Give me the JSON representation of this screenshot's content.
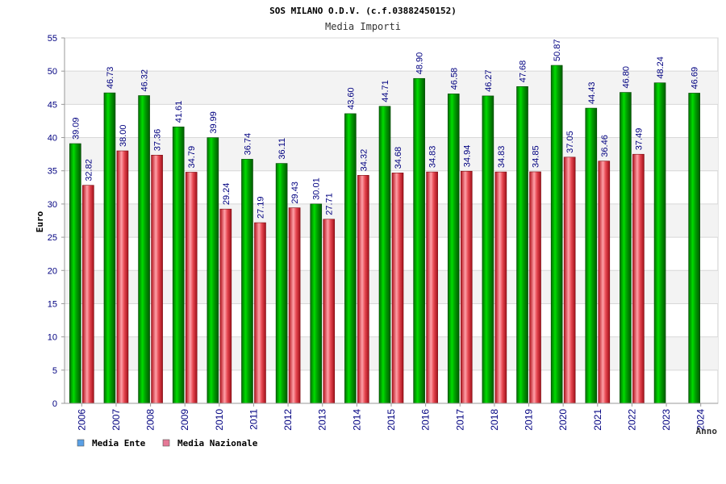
{
  "chart_data": {
    "type": "bar",
    "title": "SOS MILANO O.D.V. (c.f.03882450152)",
    "subtitle": "Media Importi",
    "xlabel": "Anno",
    "ylabel": "Euro",
    "ylim": [
      0,
      55
    ],
    "yticks": [
      "0",
      "5",
      "10",
      "15",
      "20",
      "25",
      "30",
      "35",
      "40",
      "45",
      "50",
      "55"
    ],
    "grid": true,
    "legend_position": "bottom-left",
    "categories": [
      "2006",
      "2007",
      "2008",
      "2009",
      "2010",
      "2011",
      "2012",
      "2013",
      "2014",
      "2015",
      "2016",
      "2017",
      "2018",
      "2019",
      "2020",
      "2021",
      "2022",
      "2023",
      "2024"
    ],
    "series": [
      {
        "name": "Media Ente",
        "color": "#00b400",
        "legend_color": "#5aa0e6",
        "values": [
          39.09,
          46.73,
          46.32,
          41.61,
          39.99,
          36.74,
          36.11,
          30.01,
          43.6,
          44.71,
          48.9,
          46.58,
          46.27,
          47.68,
          50.87,
          44.43,
          46.8,
          48.24,
          46.69
        ],
        "labels": [
          "39.09",
          "46.73",
          "46.32",
          "41.61",
          "39.99",
          "36.74",
          "36.11",
          "30.01",
          "43.60",
          "44.71",
          "48.90",
          "46.58",
          "46.27",
          "47.68",
          "50.87",
          "44.43",
          "46.80",
          "48.24",
          "46.69"
        ]
      },
      {
        "name": "Media Nazionale",
        "color": "#e63c46",
        "legend_color": "#e67896",
        "values": [
          32.82,
          38.0,
          37.36,
          34.79,
          29.24,
          27.19,
          29.43,
          27.71,
          34.32,
          34.68,
          34.83,
          34.94,
          34.83,
          34.85,
          37.05,
          36.46,
          37.49,
          null,
          null
        ],
        "labels": [
          "32.82",
          "38.00",
          "37.36",
          "34.79",
          "29.24",
          "27.19",
          "29.43",
          "27.71",
          "34.32",
          "34.68",
          "34.83",
          "34.94",
          "34.83",
          "34.85",
          "37.05",
          "36.46",
          "37.49",
          null,
          null
        ]
      }
    ]
  }
}
